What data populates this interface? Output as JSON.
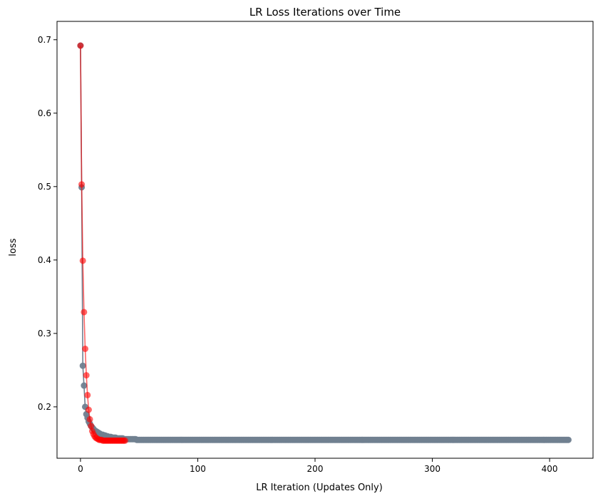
{
  "chart_data": {
    "type": "line",
    "title": "LR Loss Iterations over Time",
    "xlabel": "LR Iteration (Updates Only)",
    "ylabel": "loss",
    "xlim": [
      -20,
      437
    ],
    "ylim": [
      0.13,
      0.725
    ],
    "x_ticks": [
      0,
      100,
      200,
      300,
      400
    ],
    "y_ticks": [
      0.2,
      0.3,
      0.4,
      0.5,
      0.6,
      0.7
    ],
    "x_tick_labels": [
      "0",
      "100",
      "200",
      "300",
      "400"
    ],
    "y_tick_labels": [
      "0.2",
      "0.3",
      "0.4",
      "0.5",
      "0.6",
      "0.7"
    ],
    "grid": false,
    "legend": "none",
    "series": [
      {
        "color": "#708090",
        "marker": "circle",
        "values": [
          0.692,
          0.499,
          0.256,
          0.229,
          0.2,
          0.19,
          0.185,
          0.18,
          0.177,
          0.174,
          0.172,
          0.17,
          0.168,
          0.167,
          0.166,
          0.165,
          0.164,
          0.163,
          0.162,
          0.162,
          0.161,
          0.161,
          0.16,
          0.16,
          0.159,
          0.159,
          0.159,
          0.158,
          0.158,
          0.158,
          0.158,
          0.157,
          0.157,
          0.157,
          0.157,
          0.157,
          0.157,
          0.156,
          0.156,
          0.156,
          0.156,
          0.156,
          0.156,
          0.156,
          0.156,
          0.156,
          0.156,
          0.156,
          0.155,
          0.155
        ],
        "tail_value": 0.155,
        "tail_end_x": 416
      },
      {
        "color": "#ff0000",
        "marker": "circle",
        "values": [
          0.692,
          0.503,
          0.399,
          0.329,
          0.279,
          0.243,
          0.216,
          0.196,
          0.183,
          0.174,
          0.167,
          0.163,
          0.16,
          0.158,
          0.157,
          0.156,
          0.155,
          0.155,
          0.155,
          0.154,
          0.154,
          0.154,
          0.154,
          0.154,
          0.154,
          0.154,
          0.154,
          0.154,
          0.154,
          0.154,
          0.154,
          0.154,
          0.154,
          0.154,
          0.154,
          0.154,
          0.154,
          0.154,
          0.154
        ]
      }
    ]
  }
}
